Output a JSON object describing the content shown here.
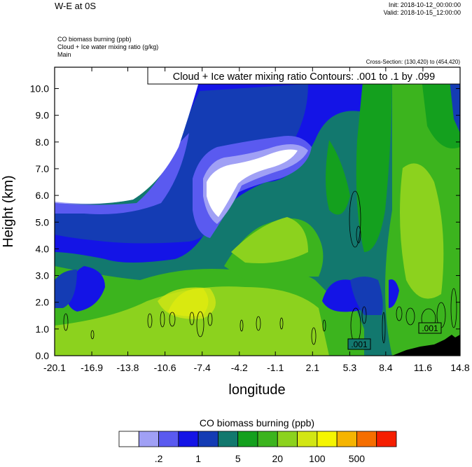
{
  "header": {
    "title_left": "W-E at 0S",
    "init_line": "Init: 2018-10-12_00:00:00",
    "valid_line": "Valid: 2018-10-15_12:00:00",
    "field_line_1": "CO biomass burning   (ppb)",
    "field_line_2": "Cloud + Ice water mixing ratio   (g/kg)",
    "field_line_3": "Main",
    "cross_section": "Cross-Section: (130,420) to (454,420)"
  },
  "chart_data": {
    "type": "heatmap",
    "contour_label": "Cloud + Ice water mixing ratio Contours: .001 to .1 by .099",
    "contour_value_labels": [
      ".001",
      ".001"
    ],
    "xlabel": "longitude",
    "ylabel": "Height (km)",
    "x_ticks": [
      "-20.1",
      "-16.9",
      "-13.8",
      "-10.6",
      "-7.4",
      "-4.2",
      "-1.1",
      "2.1",
      "5.3",
      "8.4",
      "11.6",
      "14.8"
    ],
    "x_tick_values": [
      -20.1,
      -16.9,
      -13.8,
      -10.6,
      -7.4,
      -4.2,
      -1.1,
      2.1,
      5.3,
      8.4,
      11.6,
      14.8
    ],
    "y_ticks": [
      "0.0",
      "1.0",
      "2.0",
      "3.0",
      "4.0",
      "5.0",
      "6.0",
      "7.0",
      "8.0",
      "9.0",
      "10.0"
    ],
    "y_tick_values": [
      0,
      1,
      2,
      3,
      4,
      5,
      6,
      7,
      8,
      9,
      10
    ],
    "xlim": [
      -20.1,
      14.8
    ],
    "ylim": [
      0,
      10.8
    ],
    "colorbar": {
      "title": "CO biomass burning  (ppb)",
      "colors": [
        "#ffffff",
        "#a0a0f5",
        "#5a5af0",
        "#1414e6",
        "#143cb4",
        "#12786e",
        "#14a01e",
        "#3cb41e",
        "#8cd21e",
        "#d2e614",
        "#f5f500",
        "#f5b400",
        "#f56e00",
        "#f51e00"
      ],
      "labels": [
        ".2",
        "1",
        "5",
        "20",
        "100",
        "500"
      ]
    },
    "terrain_color": "#000000"
  }
}
